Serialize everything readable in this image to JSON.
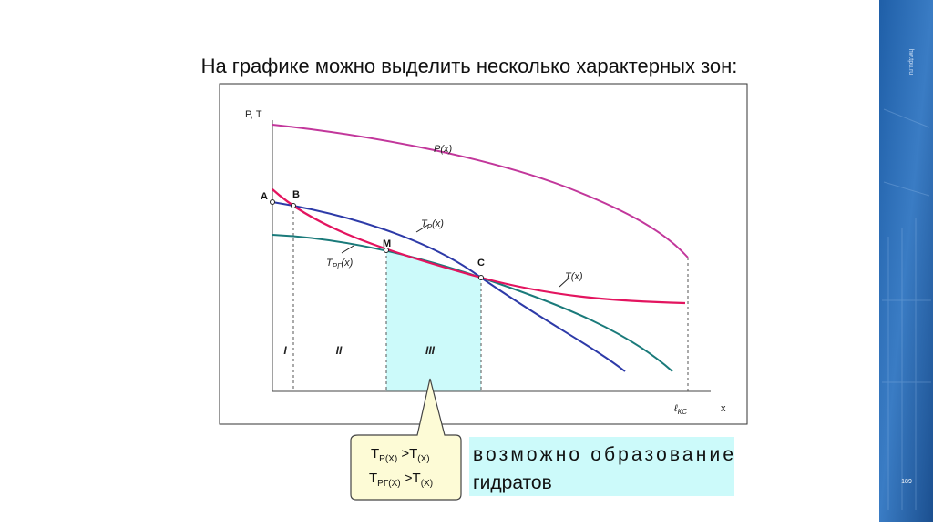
{
  "title": "На графике можно выделить несколько характерных зон:",
  "site": "hw.tpu.ru",
  "page_number": "189",
  "axes": {
    "y_label": "P, T",
    "x_label": "x",
    "x_end_label": {
      "main": "ℓ",
      "sub": "КС"
    }
  },
  "curves": {
    "pressure": {
      "main": "P",
      "tail": "(x)"
    },
    "temperature": {
      "main": "T",
      "tail": "(x)"
    },
    "t_p": {
      "main": "T",
      "sub": "P",
      "tail": "(x)"
    },
    "t_pg": {
      "main": "T",
      "sub": "PГ",
      "tail": "(x)"
    }
  },
  "points": [
    "A",
    "B",
    "M",
    "C"
  ],
  "zones": [
    "I",
    "II",
    "III"
  ],
  "callout": {
    "line1": {
      "a": "T",
      "a_sub": "P(X)",
      "b": " >T",
      "b_sub": "(X)"
    },
    "line2": {
      "a": "T",
      "a_sub": "PГ(X)",
      "b": " >T",
      "b_sub": "(X)"
    }
  },
  "note": {
    "line1": "возможно образование",
    "line2": "гидратов"
  }
}
